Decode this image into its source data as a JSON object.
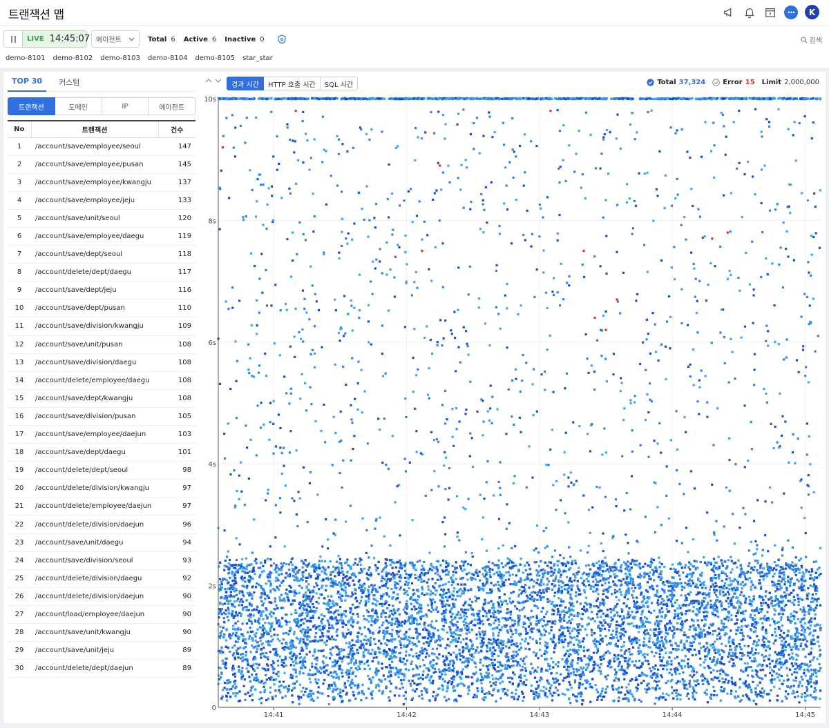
{
  "header": {
    "title": "트랜잭션 맵",
    "avatar_initial": "K",
    "icons": [
      "megaphone-icon",
      "bell-icon",
      "calendar-icon",
      "chat-icon",
      "avatar"
    ]
  },
  "toolbar": {
    "live_label": "LIVE",
    "live_time": "14:45:07",
    "agent_select": "에이전트",
    "stats": {
      "total_label": "Total",
      "total_value": "6",
      "active_label": "Active",
      "active_value": "6",
      "inactive_label": "Inactive",
      "inactive_value": "0"
    },
    "search_label": "검색",
    "agents": [
      "demo-8101",
      "demo-8102",
      "demo-8103",
      "demo-8104",
      "demo-8105",
      "star_star"
    ]
  },
  "left": {
    "tabs": [
      "TOP 30",
      "커스텀"
    ],
    "segments": [
      "트랜잭션",
      "도메인",
      "IP",
      "에이전트"
    ],
    "columns": [
      "No",
      "트랜잭션",
      "건수"
    ],
    "rows": [
      {
        "no": "1",
        "name": "/account/save/employee/seoul",
        "count": "147"
      },
      {
        "no": "2",
        "name": "/account/save/employee/pusan",
        "count": "145"
      },
      {
        "no": "3",
        "name": "/account/save/employee/kwangju",
        "count": "137"
      },
      {
        "no": "4",
        "name": "/account/save/employee/jeju",
        "count": "133"
      },
      {
        "no": "5",
        "name": "/account/save/unit/seoul",
        "count": "120"
      },
      {
        "no": "6",
        "name": "/account/save/employee/daegu",
        "count": "119"
      },
      {
        "no": "7",
        "name": "/account/save/dept/seoul",
        "count": "118"
      },
      {
        "no": "8",
        "name": "/account/delete/dept/daegu",
        "count": "117"
      },
      {
        "no": "9",
        "name": "/account/save/dept/jeju",
        "count": "116"
      },
      {
        "no": "10",
        "name": "/account/save/dept/pusan",
        "count": "110"
      },
      {
        "no": "11",
        "name": "/account/save/division/kwangju",
        "count": "109"
      },
      {
        "no": "12",
        "name": "/account/save/unit/pusan",
        "count": "108"
      },
      {
        "no": "13",
        "name": "/account/save/division/daegu",
        "count": "108"
      },
      {
        "no": "14",
        "name": "/account/delete/employee/daegu",
        "count": "108"
      },
      {
        "no": "15",
        "name": "/account/save/dept/kwangju",
        "count": "108"
      },
      {
        "no": "16",
        "name": "/account/save/division/pusan",
        "count": "105"
      },
      {
        "no": "17",
        "name": "/account/save/employee/daejun",
        "count": "103"
      },
      {
        "no": "18",
        "name": "/account/save/dept/daegu",
        "count": "101"
      },
      {
        "no": "19",
        "name": "/account/delete/dept/seoul",
        "count": "98"
      },
      {
        "no": "20",
        "name": "/account/delete/division/kwangju",
        "count": "97"
      },
      {
        "no": "21",
        "name": "/account/delete/employee/daejun",
        "count": "97"
      },
      {
        "no": "22",
        "name": "/account/delete/division/daejun",
        "count": "96"
      },
      {
        "no": "23",
        "name": "/account/save/unit/daegu",
        "count": "94"
      },
      {
        "no": "24",
        "name": "/account/save/division/seoul",
        "count": "93"
      },
      {
        "no": "25",
        "name": "/account/delete/division/daegu",
        "count": "92"
      },
      {
        "no": "26",
        "name": "/account/delete/division/daejun",
        "count": "90"
      },
      {
        "no": "27",
        "name": "/account/load/employee/daejun",
        "count": "90"
      },
      {
        "no": "28",
        "name": "/account/save/unit/kwangju",
        "count": "90"
      },
      {
        "no": "29",
        "name": "/account/save/unit/jeju",
        "count": "89"
      },
      {
        "no": "30",
        "name": "/account/delete/dept/daejun",
        "count": "89"
      }
    ]
  },
  "chart": {
    "tabs": [
      "경과 시간",
      "HTTP 호출 시간",
      "SQL 시간"
    ],
    "legend": {
      "total_label": "Total",
      "total_value": "37,324",
      "error_label": "Error",
      "error_value": "15",
      "limit_label": "Limit",
      "limit_value": "2,000,000"
    }
  },
  "chart_data": {
    "type": "scatter",
    "title": "",
    "xlabel": "",
    "ylabel": "",
    "x_ticks": [
      "14:41",
      "14:42",
      "14:43",
      "14:44",
      "14:45"
    ],
    "y_ticks": [
      "0",
      "2s",
      "4s",
      "6s",
      "8s",
      "10s"
    ],
    "xlim": [
      "14:40:35",
      "14:45:07"
    ],
    "ylim": [
      0,
      10
    ],
    "y_unit": "s",
    "grid": true,
    "total_points": 37324,
    "error_points": 15,
    "point_colors": {
      "normal_a": "#2f83e8",
      "normal_b": "#1a4fcf",
      "normal_c": "#3ba6ef",
      "error": "#e03131"
    },
    "dense_band_seconds": [
      0.0,
      2.4
    ],
    "error_samples": [
      {
        "x": "14:40:37",
        "y": 9.2
      },
      {
        "x": "14:41:10",
        "y": 9.8
      },
      {
        "x": "14:42:15",
        "y": 8.9
      },
      {
        "x": "14:42:07",
        "y": 7.5
      },
      {
        "x": "14:43:05",
        "y": 9.8
      },
      {
        "x": "14:43:20",
        "y": 7.5
      },
      {
        "x": "14:43:25",
        "y": 6.4
      },
      {
        "x": "14:43:30",
        "y": 6.2
      },
      {
        "x": "14:44:18",
        "y": 7.7
      },
      {
        "x": "14:44:25",
        "y": 7.8
      },
      {
        "x": "14:43:35",
        "y": 6.7
      },
      {
        "x": "14:40:57",
        "y": 6.6
      },
      {
        "x": "14:41:55",
        "y": 7.4
      }
    ]
  }
}
